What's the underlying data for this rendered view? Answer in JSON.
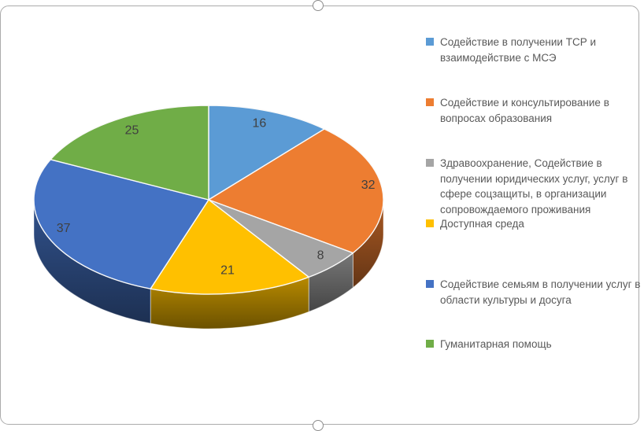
{
  "frame": {
    "border_color": "#ababab",
    "background": "#ffffff"
  },
  "chart_data": {
    "type": "pie",
    "projection": "3d",
    "title": "",
    "legend_position": "right",
    "start_angle_deg": 0,
    "direction": "clockwise",
    "labels": [
      "Содействие в получении ТСР и взаимодействие с МСЭ",
      "Содействие и консультирование в вопросах образования",
      "Здравоохранение, Содействие в получении юридических услуг, услуг в сфере соцзащиты, в организации сопровождаемого проживания",
      "Доступная среда",
      "Содействие семьям в получении услуг в области культуры и досуга",
      "Гуманитарная помощь"
    ],
    "values": [
      16,
      32,
      8,
      21,
      37,
      25
    ],
    "total": 139,
    "colors": [
      "#5B9BD5",
      "#ED7D31",
      "#A5A5A5",
      "#FFC000",
      "#4472C4",
      "#70AD47"
    ],
    "data_labels": [
      "16",
      "32",
      "8",
      "21",
      "37",
      "25"
    ],
    "data_label_color": "#404040",
    "legend_text_color": "#595959"
  }
}
